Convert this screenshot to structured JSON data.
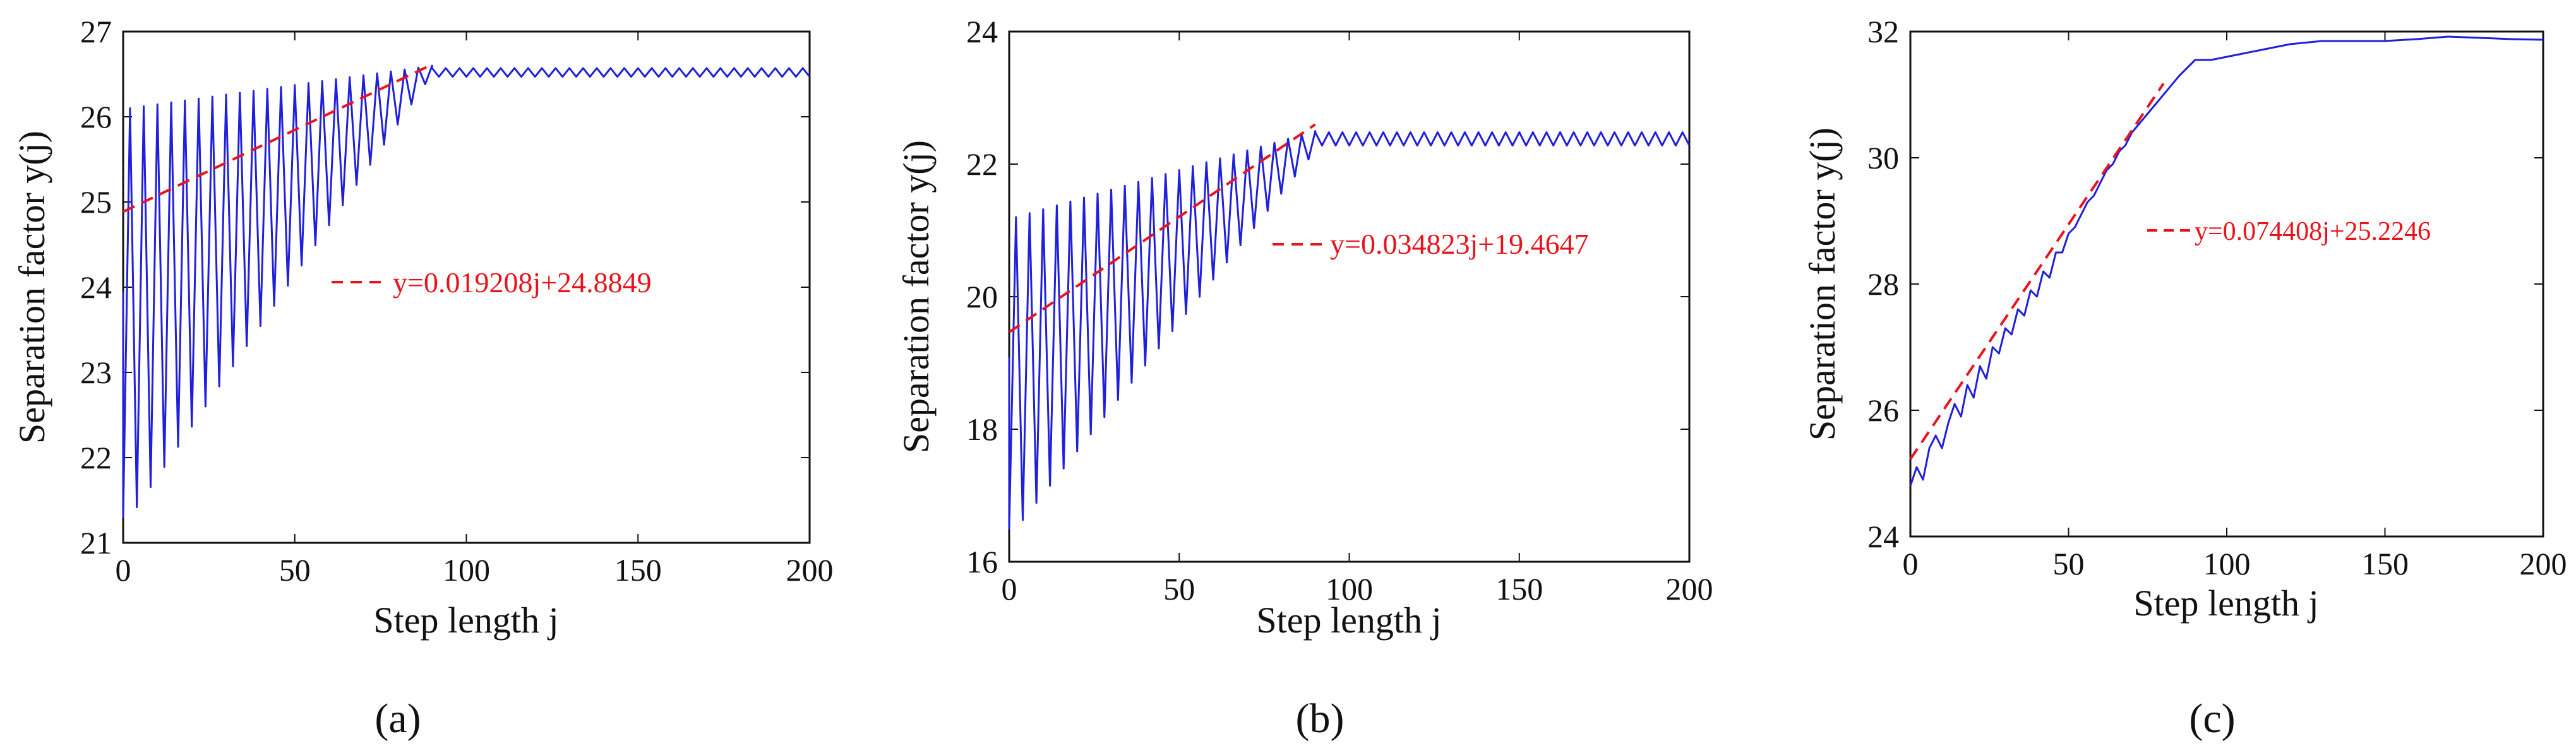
{
  "chart_data": [
    {
      "type": "line",
      "panel_label": "(a)",
      "xlabel": "Step length j",
      "ylabel": "Separation factor y(j)",
      "xlim": [
        0,
        200
      ],
      "ylim": [
        21,
        27
      ],
      "xticks": [
        0,
        50,
        100,
        150,
        200
      ],
      "yticks": [
        21,
        22,
        23,
        24,
        25,
        26,
        27
      ],
      "grid": false,
      "series": [
        {
          "name": "y(j)",
          "color": "#1f1fdc",
          "pattern": "oscillating",
          "period": 4,
          "peaks": [
            [
              2,
              26.1
            ],
            [
              90,
              26.6
            ]
          ],
          "troughs": [
            [
              2,
              21.3
            ],
            [
              90,
              26.5
            ]
          ],
          "tail": {
            "x_from": 90,
            "x_to": 200,
            "mean": 26.52,
            "amplitude": 0.05
          }
        },
        {
          "name": "fit",
          "color": "#e8141c",
          "dashed": true,
          "slope": 0.019208,
          "intercept": 24.8849,
          "x_range": [
            0,
            90
          ]
        }
      ],
      "legend_label": "y=0.019208j+24.8849",
      "legend_sample_color": "#e8141c"
    },
    {
      "type": "line",
      "panel_label": "(b)",
      "xlabel": "Step length j",
      "ylabel": "Separation factor y(j)",
      "xlim": [
        0,
        200
      ],
      "ylim": [
        16,
        24
      ],
      "xticks": [
        0,
        50,
        100,
        150,
        200
      ],
      "yticks": [
        16,
        18,
        20,
        22,
        24
      ],
      "grid": false,
      "series": [
        {
          "name": "y(j)",
          "color": "#1f1fdc",
          "pattern": "oscillating",
          "period": 4,
          "peaks": [
            [
              2,
              21.2
            ],
            [
              90,
              22.5
            ]
          ],
          "troughs": [
            [
              2,
              16.5
            ],
            [
              90,
              22.2
            ]
          ],
          "tail": {
            "x_from": 90,
            "x_to": 200,
            "mean": 22.38,
            "amplitude": 0.1
          }
        },
        {
          "name": "fit",
          "color": "#e8141c",
          "dashed": true,
          "slope": 0.034823,
          "intercept": 19.4647,
          "x_range": [
            0,
            90
          ]
        }
      ],
      "legend_label": "y=0.034823j+19.4647",
      "legend_sample_color": "#e8141c"
    },
    {
      "type": "line",
      "panel_label": "(c)",
      "xlabel": "Step length j",
      "ylabel": "Separation factor y(j)",
      "xlim": [
        0,
        200
      ],
      "ylim": [
        24,
        32
      ],
      "xticks": [
        0,
        50,
        100,
        150,
        200
      ],
      "yticks": [
        24,
        26,
        28,
        30,
        32
      ],
      "grid": false,
      "series": [
        {
          "name": "y(j)",
          "color": "#1f1fdc",
          "pattern": "points",
          "x": [
            0,
            2,
            4,
            6,
            8,
            10,
            12,
            14,
            16,
            18,
            20,
            22,
            24,
            26,
            28,
            30,
            32,
            34,
            36,
            38,
            40,
            42,
            44,
            46,
            48,
            50,
            52,
            54,
            56,
            58,
            60,
            62,
            64,
            66,
            68,
            70,
            75,
            80,
            85,
            90,
            95,
            100,
            110,
            120,
            130,
            140,
            150,
            160,
            170,
            180,
            190,
            200
          ],
          "y": [
            24.8,
            25.1,
            24.9,
            25.4,
            25.6,
            25.4,
            25.8,
            26.1,
            25.9,
            26.4,
            26.2,
            26.7,
            26.5,
            27.0,
            26.9,
            27.3,
            27.2,
            27.6,
            27.5,
            27.9,
            27.8,
            28.2,
            28.1,
            28.5,
            28.5,
            28.8,
            28.9,
            29.1,
            29.3,
            29.4,
            29.6,
            29.8,
            29.9,
            30.1,
            30.2,
            30.4,
            30.7,
            31.0,
            31.3,
            31.55,
            31.55,
            31.6,
            31.7,
            31.8,
            31.85,
            31.85,
            31.85,
            31.88,
            31.92,
            31.9,
            31.88,
            31.87
          ]
        },
        {
          "name": "fit",
          "color": "#e8141c",
          "dashed": true,
          "slope": 0.074408,
          "intercept": 25.2246,
          "x_range": [
            0,
            80
          ]
        }
      ],
      "legend_label": "y=0.074408j+25.2246",
      "legend_sample_color": "#e8141c"
    }
  ]
}
